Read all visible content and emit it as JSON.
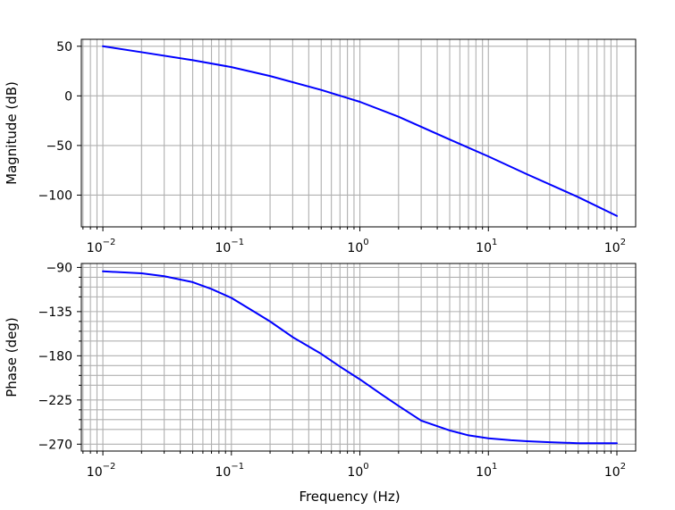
{
  "chart_data": [
    {
      "type": "line",
      "x_scale": "log",
      "xlim": [
        0.0068,
        140
      ],
      "ylim": [
        -132,
        57
      ],
      "ylabel": "Magnitude (dB)",
      "xlabel": "",
      "grid": true,
      "x_ticks": [
        0.01,
        0.1,
        1,
        10,
        100
      ],
      "x_tick_labels": [
        {
          "base": "10",
          "exp": "−2"
        },
        {
          "base": "10",
          "exp": "−1"
        },
        {
          "base": "10",
          "exp": "0"
        },
        {
          "base": "10",
          "exp": "1"
        },
        {
          "base": "10",
          "exp": "2"
        }
      ],
      "y_ticks": [
        50,
        0,
        -50,
        -100
      ],
      "y_tick_labels": [
        "50",
        "0",
        "−50",
        "−100"
      ],
      "minor_y_ticks": [],
      "series": [
        {
          "color": "#0000ff",
          "x": [
            0.01,
            0.02,
            0.05,
            0.1,
            0.2,
            0.5,
            1,
            2,
            5,
            10,
            20,
            50,
            100
          ],
          "y": [
            50,
            44,
            36,
            29,
            20,
            6,
            -6,
            -21,
            -44,
            -61,
            -79,
            -102,
            -121
          ]
        }
      ]
    },
    {
      "type": "line",
      "x_scale": "log",
      "xlim": [
        0.0068,
        140
      ],
      "ylim": [
        -277,
        -86
      ],
      "ylabel": "Phase (deg)",
      "xlabel": "Frequency (Hz)",
      "grid": true,
      "x_ticks": [
        0.01,
        0.1,
        1,
        10,
        100
      ],
      "x_tick_labels": [
        {
          "base": "10",
          "exp": "−2"
        },
        {
          "base": "10",
          "exp": "−1"
        },
        {
          "base": "10",
          "exp": "0"
        },
        {
          "base": "10",
          "exp": "1"
        },
        {
          "base": "10",
          "exp": "2"
        }
      ],
      "y_ticks": [
        -90,
        -135,
        -180,
        -225,
        -270
      ],
      "y_tick_labels": [
        "−90",
        "−135",
        "−180",
        "−225",
        "−270"
      ],
      "minor_y_ticks": [
        -100,
        -110,
        -120,
        -145,
        -155,
        -165,
        -190,
        -200,
        -210,
        -235,
        -245,
        -255
      ],
      "series": [
        {
          "color": "#0000ff",
          "x": [
            0.01,
            0.02,
            0.03,
            0.05,
            0.07,
            0.1,
            0.15,
            0.2,
            0.3,
            0.5,
            0.7,
            1,
            1.5,
            2,
            3,
            5,
            7,
            10,
            15,
            20,
            30,
            50,
            100
          ],
          "y": [
            -94,
            -96,
            -99,
            -105,
            -112,
            -121,
            -135,
            -145,
            -161,
            -178,
            -191,
            -204,
            -220,
            -231,
            -246,
            -256,
            -261,
            -264,
            -266,
            -267,
            -268,
            -269,
            -269
          ]
        }
      ]
    }
  ]
}
